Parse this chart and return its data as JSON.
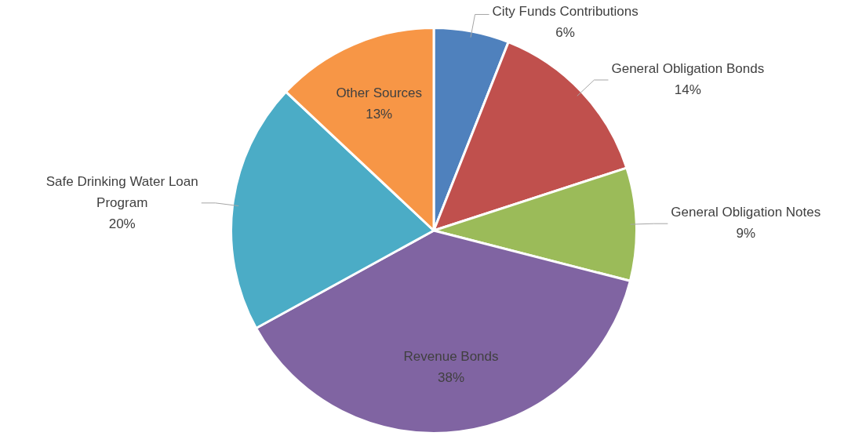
{
  "chart_data": {
    "type": "pie",
    "categories": [
      "City Funds Contributions",
      "General Obligation Bonds",
      "General Obligation Notes",
      "Revenue Bonds",
      "Safe Drinking Water Loan Program",
      "Other Sources"
    ],
    "values": [
      6,
      14,
      9,
      38,
      20,
      13
    ],
    "colors": [
      "#4f81bd",
      "#c0504d",
      "#9bbb59",
      "#8064a2",
      "#4bacc6",
      "#f79646"
    ],
    "legend": false,
    "value_labels": [
      "6%",
      "14%",
      "9%",
      "38%",
      "20%",
      "13%"
    ]
  }
}
